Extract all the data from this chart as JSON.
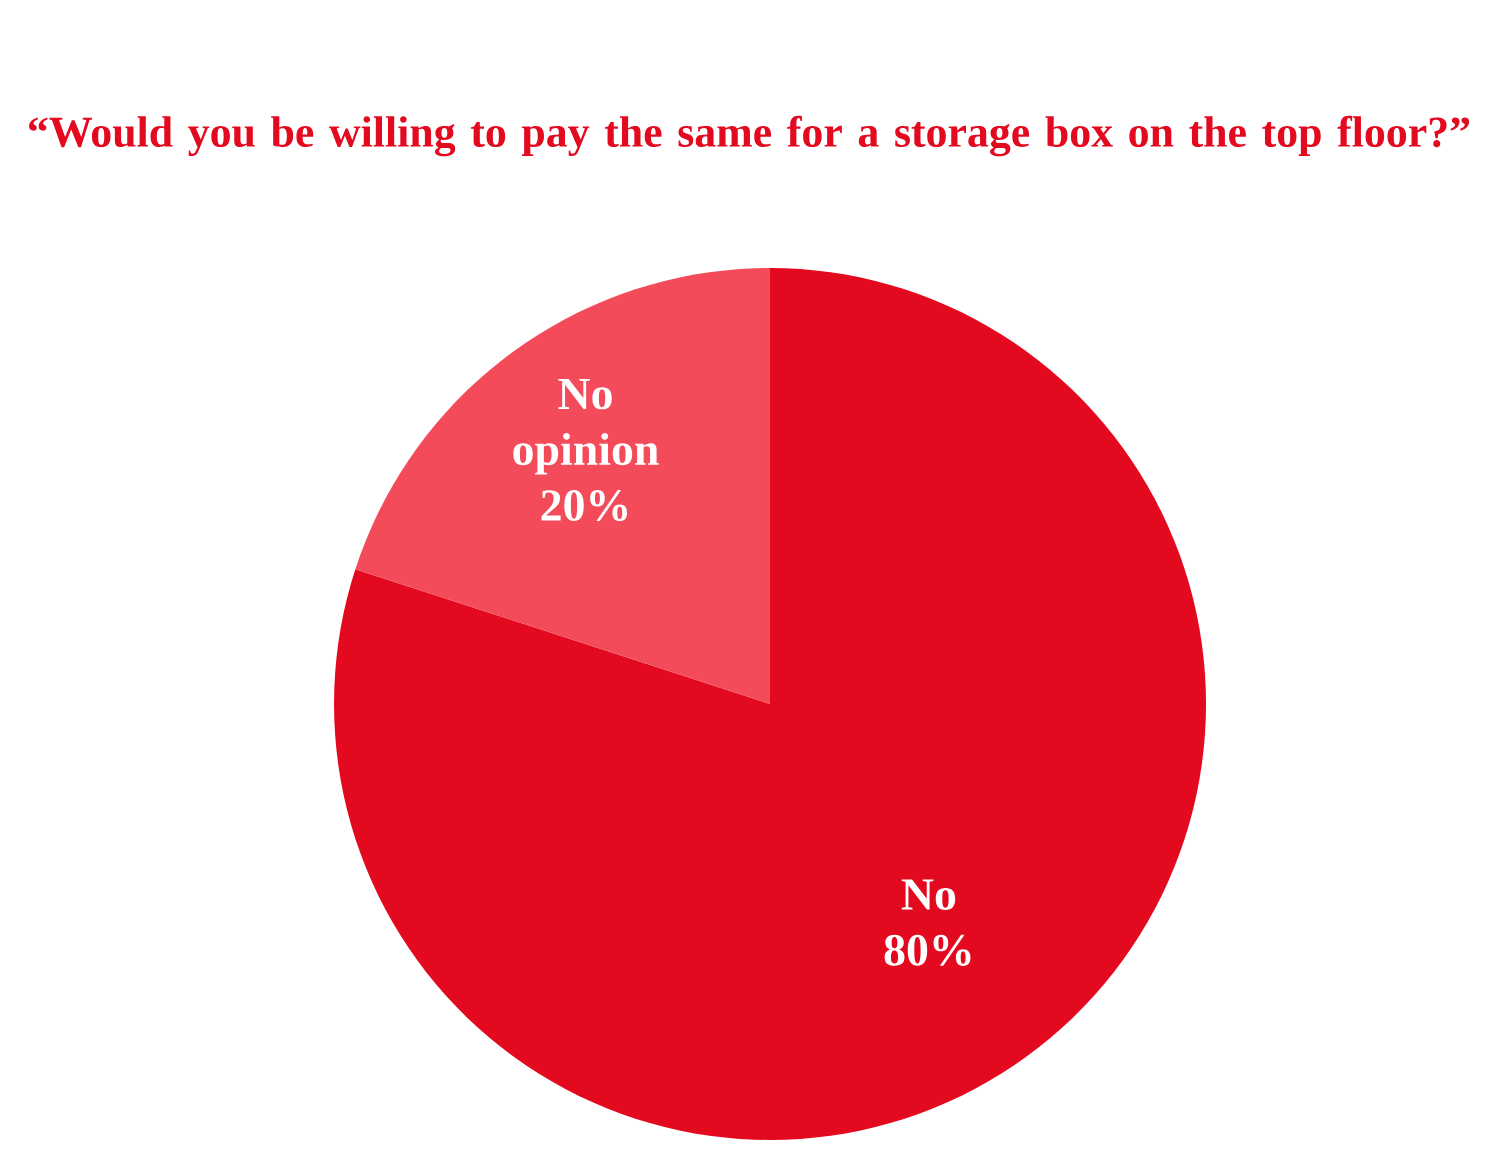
{
  "chart_data": {
    "type": "pie",
    "title": "“Would you be willing to pay the same for a storage box on the top floor?”",
    "categories": [
      "No",
      "No opinion"
    ],
    "values": [
      80,
      20
    ],
    "value_labels": [
      "80%",
      "20%"
    ],
    "colors": [
      "#e30a20",
      "#f44b5a"
    ]
  }
}
